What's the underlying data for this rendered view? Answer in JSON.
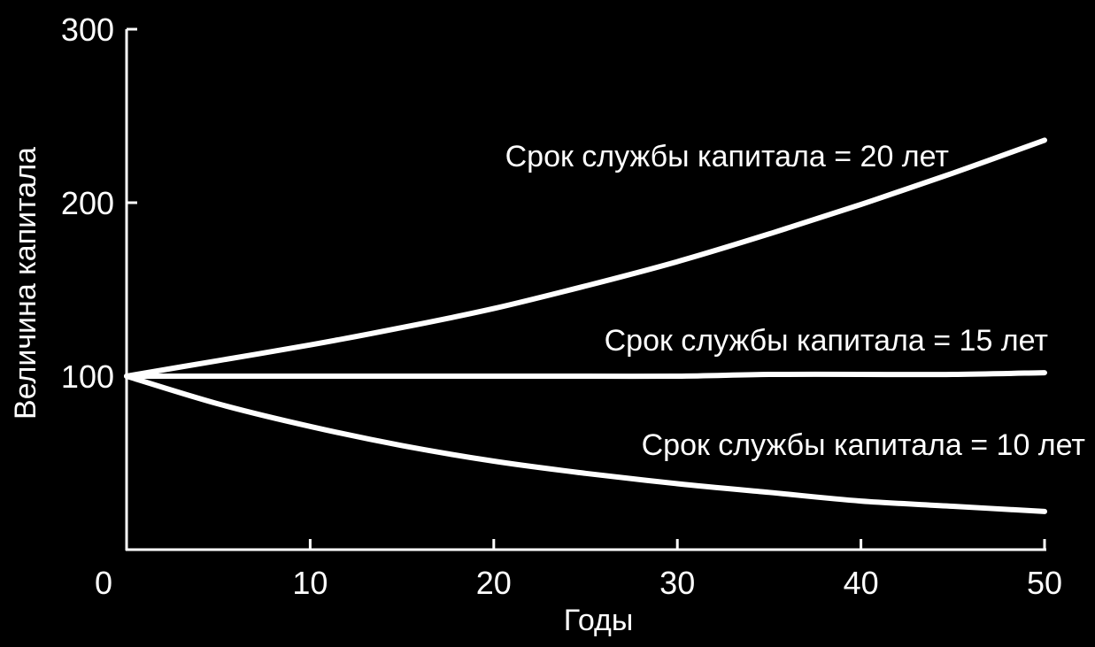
{
  "chart_data": {
    "type": "line",
    "xlabel": "Годы",
    "ylabel": "Величина капитала",
    "xlim": [
      0,
      50
    ],
    "ylim": [
      0,
      300
    ],
    "x_ticks": [
      0,
      10,
      20,
      30,
      40,
      50
    ],
    "y_ticks": [
      100,
      200,
      300
    ],
    "grid": false,
    "legend": "none",
    "series": [
      {
        "name": "Срок службы капитала = 20 лет",
        "x": [
          0,
          5,
          10,
          15,
          20,
          25,
          30,
          35,
          40,
          45,
          50
        ],
        "y": [
          100,
          109,
          118,
          128,
          139,
          152,
          166,
          182,
          199,
          217,
          236
        ]
      },
      {
        "name": "Срок службы капитала = 15 лет",
        "x": [
          0,
          5,
          10,
          15,
          20,
          25,
          30,
          35,
          40,
          45,
          50
        ],
        "y": [
          100,
          100,
          100,
          100,
          100,
          100,
          100,
          101,
          101,
          101,
          102
        ]
      },
      {
        "name": "Срок службы капитала = 10 лет",
        "x": [
          0,
          5,
          10,
          15,
          20,
          25,
          30,
          35,
          40,
          45,
          50
        ],
        "y": [
          100,
          84,
          71,
          60,
          51,
          44,
          38,
          33,
          28,
          25,
          22
        ]
      }
    ],
    "colors": {
      "background": "#000000",
      "foreground": "#ffffff"
    }
  }
}
